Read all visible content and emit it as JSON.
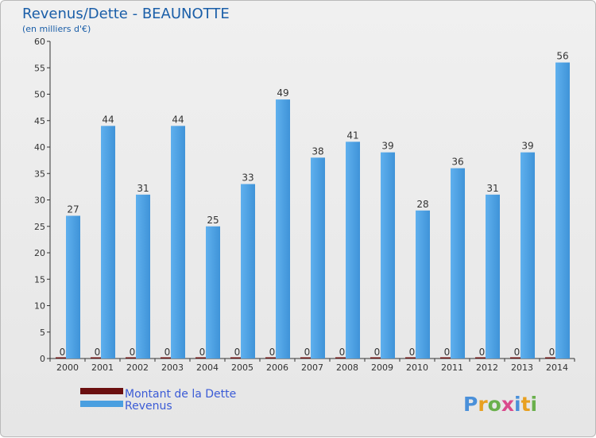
{
  "chart_data": {
    "type": "bar",
    "title": "Revenus/Dette - BEAUNOTTE",
    "subtitle": "(en milliers d'€)",
    "categories": [
      "2000",
      "2001",
      "2002",
      "2003",
      "2004",
      "2005",
      "2006",
      "2007",
      "2008",
      "2009",
      "2010",
      "2011",
      "2012",
      "2013",
      "2014"
    ],
    "series": [
      {
        "name": "Montant de la Dette",
        "color": "#6b0f0f",
        "values": [
          0,
          0,
          0,
          0,
          0,
          0,
          0,
          0,
          0,
          0,
          0,
          0,
          0,
          0,
          0
        ]
      },
      {
        "name": "Revenus",
        "color": "#4a9fe0",
        "values": [
          27,
          44,
          31,
          44,
          25,
          33,
          49,
          38,
          41,
          39,
          28,
          36,
          31,
          39,
          56
        ]
      }
    ],
    "ylim": [
      0,
      60
    ],
    "yticks": [
      0,
      5,
      10,
      15,
      20,
      25,
      30,
      35,
      40,
      45,
      50,
      55,
      60
    ],
    "grid": false,
    "legend_placement": "bottom-left"
  },
  "logo": {
    "text": "Proxiti"
  }
}
